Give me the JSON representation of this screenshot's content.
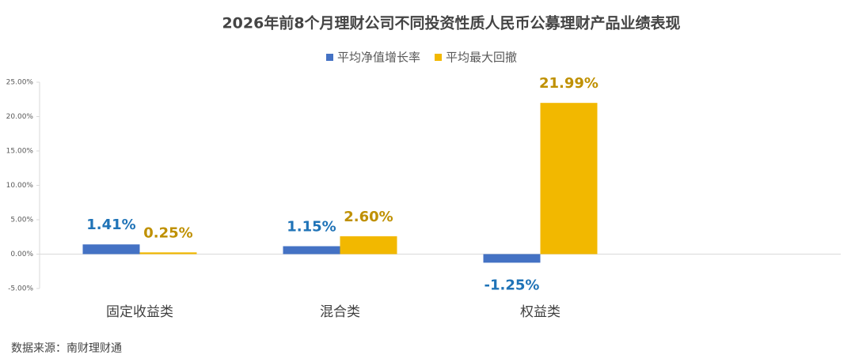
{
  "chart_data": {
    "type": "bar",
    "title": "2026年前8个月理财公司不同投资性质人民币公募理财产品业绩表现",
    "categories": [
      "固定收益类",
      "混合类",
      "权益类",
      null
    ],
    "series": [
      {
        "name": "平均净值增长率",
        "color": "#4472c4",
        "label_color": "#1f73b7",
        "values": [
          1.41,
          1.15,
          -1.25,
          null
        ],
        "value_labels": [
          "1.41%",
          "1.15%",
          "-1.25%",
          null
        ]
      },
      {
        "name": "平均最大回撤",
        "color": "#f2b800",
        "label_color": "#bf9000",
        "values": [
          0.25,
          2.6,
          21.99,
          null
        ],
        "value_labels": [
          "0.25%",
          "2.60%",
          "21.99%",
          null
        ]
      }
    ],
    "ylim": [
      -5,
      25
    ],
    "yticks": [
      {
        "value": -5,
        "label": "-5.00%"
      },
      {
        "value": 0,
        "label": "0.00%"
      },
      {
        "value": 5,
        "label": "5.00%"
      },
      {
        "value": 10,
        "label": "10.00%"
      },
      {
        "value": 15,
        "label": "15.00%"
      },
      {
        "value": 20,
        "label": "20.00%"
      },
      {
        "value": 25,
        "label": "25.00%"
      }
    ],
    "grid": false,
    "legend": "top",
    "source": "数据来源：南财理财通"
  }
}
